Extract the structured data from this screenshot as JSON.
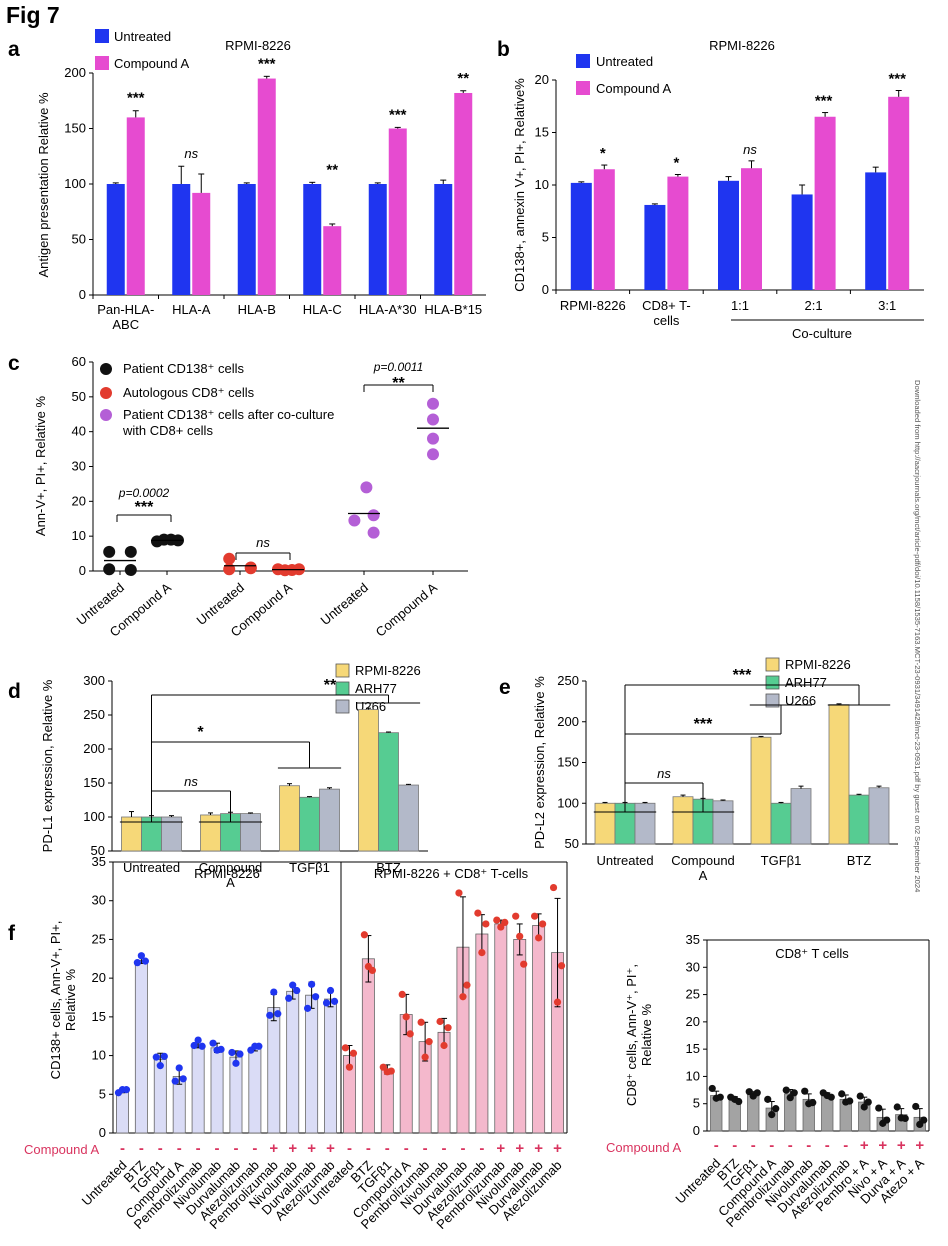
{
  "figure_title": "Fig 7",
  "side_note": "Downloaded from http://aacrjournals.org/mct/article-pdf/doi/10.1158/1535-7163.MCT-23-0931/3491428/mct-23-0931.pdf by guest on 02 September 2024",
  "colors": {
    "untreated": "#1f35f0",
    "compound": "#e64bd0",
    "rpmi": "#f6d878",
    "arh77": "#56cc92",
    "u266": "#b3b9c9",
    "panel_f_light": "#dadcf6",
    "panel_f_pink": "#f4b8cc",
    "panel_f_gray": "#a3a3a3",
    "dot_blue": "#1f35f0",
    "dot_red": "#e23b2e",
    "dot_black": "#111111",
    "dot_purple": "#b45fd6",
    "minus_plus": "#d9345f"
  },
  "chart_data": [
    {
      "panel": "a",
      "type": "bar",
      "title": "RPMI-8226",
      "ylabel": "Antigen presentation  Relative %",
      "ylim": [
        0,
        200
      ],
      "yticks": [
        "0",
        "50",
        "100",
        "150",
        "200"
      ],
      "categories": [
        "Pan-HLA-\nABC",
        "HLA-A",
        "HLA-B",
        "HLA-C",
        "HLA-A*30",
        "HLA-B*15"
      ],
      "series": [
        {
          "name": "Untreated",
          "values": [
            100,
            100,
            100,
            100,
            100,
            100
          ],
          "errors": [
            1,
            16,
            1,
            1.5,
            1,
            3.5
          ]
        },
        {
          "name": "Compound A",
          "values": [
            160,
            92,
            195,
            62,
            150,
            182
          ],
          "errors": [
            6,
            17,
            2,
            2,
            1,
            2
          ]
        }
      ],
      "significance": [
        "***",
        "ns",
        "***",
        "**",
        "***",
        "**"
      ]
    },
    {
      "panel": "b",
      "type": "bar",
      "title": "RPMI-8226",
      "ylabel": "CD138+, annexin V+, PI+, Relative%",
      "ylim": [
        0,
        20
      ],
      "yticks": [
        "0",
        "5",
        "10",
        "15",
        "20"
      ],
      "categories": [
        "RPMI-8226",
        "CD8+ T-\ncells",
        "1:1",
        "2:1",
        "3:1"
      ],
      "group_label": "Co-culture",
      "series": [
        {
          "name": "Untreated",
          "values": [
            10.2,
            8.1,
            10.4,
            9.1,
            11.2
          ],
          "errors": [
            0.1,
            0.1,
            0.4,
            0.9,
            0.5
          ]
        },
        {
          "name": "Compound A",
          "values": [
            11.5,
            10.8,
            11.6,
            16.5,
            18.4
          ],
          "errors": [
            0.4,
            0.2,
            0.7,
            0.4,
            0.6
          ]
        }
      ],
      "significance": [
        "*",
        "*",
        "ns",
        "***",
        "***"
      ]
    },
    {
      "panel": "c",
      "type": "scatter",
      "ylabel": "Ann-V+, PI+, Relative %",
      "ylim": [
        0,
        60
      ],
      "yticks": [
        "0",
        "10",
        "20",
        "30",
        "40",
        "50",
        "60"
      ],
      "x_tick_labels": [
        "Untreated",
        "Compound A",
        "Untreated",
        "Compound A",
        "Untreated",
        "Compound A"
      ],
      "legend": [
        "Patient CD138⁺ cells",
        "Autologous CD8⁺ cells",
        "Patient CD138⁺ cells after co-culture\nwith CD8+ cells"
      ],
      "groups": [
        {
          "name": "Patient CD138⁺ cells",
          "untreated": [
            5.5,
            5.5,
            0.5,
            0.3
          ],
          "compound": [
            8.5,
            9.0,
            9.0,
            8.8
          ],
          "mean_untreated": 3.0,
          "mean_compound": 8.8
        },
        {
          "name": "Autologous CD8⁺ cells",
          "untreated": [
            3.5,
            1.0,
            0.5,
            0.8
          ],
          "compound": [
            0.5,
            0.2,
            0.3,
            0.5
          ],
          "mean_untreated": 1.5,
          "mean_compound": 0.4
        },
        {
          "name": "Patient CD138⁺ cells after co-culture",
          "untreated": [
            24.0,
            16.0,
            14.5,
            11.0
          ],
          "compound": [
            48.0,
            43.5,
            38.0,
            33.5
          ],
          "mean_untreated": 16.5,
          "mean_compound": 41.0
        }
      ],
      "annotations": [
        {
          "pvalue": "p=0.0002",
          "stars": "***"
        },
        {
          "pvalue": "",
          "stars": "ns"
        },
        {
          "pvalue": "p=0.0011",
          "stars": "**"
        }
      ]
    },
    {
      "panel": "d",
      "type": "bar",
      "ylabel": "PD-L1 expression, Relative %",
      "ylim": [
        50,
        300
      ],
      "yticks": [
        "50",
        "100",
        "150",
        "200",
        "250",
        "300"
      ],
      "categories": [
        "Untreated",
        "Compound\nA",
        "TGFβ1",
        "BTZ"
      ],
      "series": [
        {
          "name": "RPMI-8226",
          "values": [
            100,
            103,
            146,
            258
          ],
          "errors": [
            8,
            3,
            3,
            2
          ]
        },
        {
          "name": "ARH77",
          "values": [
            100,
            105,
            129,
            224
          ],
          "errors": [
            2,
            2,
            1,
            1
          ]
        },
        {
          "name": "U266",
          "values": [
            100,
            105,
            141,
            147
          ],
          "errors": [
            2,
            1,
            2,
            1
          ]
        }
      ],
      "brackets": [
        "ns",
        "*",
        "**"
      ]
    },
    {
      "panel": "e",
      "type": "bar",
      "ylabel": "PD-L2 expression, Relative %",
      "ylim": [
        50,
        250
      ],
      "yticks": [
        "50",
        "100",
        "150",
        "200",
        "250"
      ],
      "categories": [
        "Untreated",
        "Compound\nA",
        "TGFβ1",
        "BTZ"
      ],
      "series": [
        {
          "name": "RPMI-8226",
          "values": [
            100,
            108,
            181,
            221
          ],
          "errors": [
            1,
            2,
            1,
            1
          ]
        },
        {
          "name": "ARH77",
          "values": [
            100,
            105,
            100,
            110
          ],
          "errors": [
            1,
            1,
            1,
            1
          ]
        },
        {
          "name": "U266",
          "values": [
            100,
            103,
            118,
            119
          ],
          "errors": [
            1,
            1,
            3,
            2
          ]
        }
      ],
      "brackets": [
        "ns",
        "***",
        "***"
      ]
    },
    {
      "panel": "f",
      "type": "bar",
      "ylabel": "CD138+ cells, Ann-V+, PI+,\nRelative %",
      "ylim": [
        0,
        35
      ],
      "yticks": [
        "0",
        "5",
        "10",
        "15",
        "20",
        "25",
        "30",
        "35"
      ],
      "row_label": "Compound A",
      "sections": [
        {
          "title": "RPMI-8226",
          "categories": [
            "Untreated",
            "BTZ",
            "TGFβ1",
            "Compound A",
            "Pembrolizumab",
            "Nivolumab",
            "Durvalumab",
            "Atezolizumab",
            "Pembrolizumab",
            "Nivolumab",
            "Durvalumab",
            "Atezolizumab"
          ],
          "values": [
            5.5,
            22.3,
            9.5,
            7.3,
            11.5,
            11.0,
            9.8,
            11.0,
            16.2,
            18.3,
            17.8,
            17.3
          ],
          "errors": [
            0.3,
            0.4,
            0.8,
            1.0,
            0.5,
            0.6,
            0.8,
            0.4,
            1.7,
            1.0,
            1.7,
            1.0
          ],
          "points": [
            [
              5.2,
              5.6,
              5.6
            ],
            [
              22.0,
              22.9,
              22.2
            ],
            [
              9.8,
              8.7,
              9.9
            ],
            [
              6.7,
              8.4,
              7.0
            ],
            [
              11.3,
              12.0,
              11.2
            ],
            [
              11.6,
              10.7,
              10.8
            ],
            [
              10.4,
              9.0,
              10.2
            ],
            [
              10.7,
              11.2,
              11.2
            ],
            [
              15.2,
              18.2,
              15.4
            ],
            [
              17.4,
              19.1,
              18.4
            ],
            [
              16.1,
              19.2,
              17.6
            ],
            [
              16.8,
              18.4,
              17.0
            ]
          ],
          "compound": [
            "-",
            "-",
            "-",
            "-",
            "-",
            "-",
            "-",
            "-",
            "+",
            "+",
            "+",
            "+"
          ]
        },
        {
          "title": "RPMI-8226 + CD8⁺ T-cells",
          "categories": [
            "Untreated",
            "BTZ",
            "TGFβ1",
            "Compound A",
            "Pembrolizumab",
            "Nivolumab",
            "Durvalumab",
            "Atezolizumab",
            "Pembrolizumab",
            "Nivolumab",
            "Durvalumab",
            "Atezolizumab"
          ],
          "values": [
            10.0,
            22.5,
            8.2,
            15.3,
            11.8,
            13.0,
            24.0,
            25.7,
            27.0,
            25.0,
            26.8,
            23.3
          ],
          "errors": [
            1.3,
            3.0,
            0.6,
            2.6,
            2.5,
            1.8,
            6.5,
            2.5,
            0.5,
            2.0,
            1.5,
            7.0
          ],
          "points": [
            [
              11.0,
              8.5,
              10.3
            ],
            [
              25.6,
              21.5,
              21.0
            ],
            [
              8.5,
              7.9,
              8.0
            ],
            [
              17.9,
              15.0,
              12.8
            ],
            [
              14.3,
              9.8,
              11.8
            ],
            [
              14.4,
              11.3,
              13.6
            ],
            [
              31.0,
              17.6,
              19.1
            ],
            [
              28.4,
              23.3,
              27.0
            ],
            [
              27.5,
              26.6,
              27.2
            ],
            [
              28.0,
              25.4,
              21.8
            ],
            [
              28.0,
              25.2,
              27.0
            ],
            [
              31.7,
              16.9,
              21.6
            ]
          ],
          "compound": [
            "-",
            "-",
            "-",
            "-",
            "-",
            "-",
            "-",
            "-",
            "+",
            "+",
            "+",
            "+"
          ]
        }
      ]
    },
    {
      "panel": "f2",
      "type": "bar",
      "title": "CD8⁺ T cells",
      "ylabel": "CD8⁺ cells, Ann-V⁺, PI⁺,\nRelative %",
      "ylim": [
        0,
        35
      ],
      "yticks": [
        "0",
        "5",
        "10",
        "15",
        "20",
        "25",
        "30",
        "35"
      ],
      "row_label": "Compound A",
      "categories": [
        "Untreated",
        "BTZ",
        "TGFβ1",
        "Compound A",
        "Pembrolizumab",
        "Nivolumab",
        "Durvalumab",
        "Atezolizumab",
        "Pembro + A",
        "Nivo + A",
        "Durva + A",
        "Atezo + A"
      ],
      "values": [
        6.5,
        5.8,
        6.8,
        4.2,
        6.8,
        5.8,
        6.5,
        5.8,
        5.3,
        2.5,
        3.0,
        2.5
      ],
      "errors": [
        0.8,
        0.5,
        0.4,
        1.2,
        0.8,
        1.0,
        0.5,
        0.8,
        0.9,
        1.5,
        1.1,
        1.6
      ],
      "points": [
        [
          7.8,
          6.0,
          6.2
        ],
        [
          6.2,
          5.8,
          5.4
        ],
        [
          7.2,
          6.4,
          7.0
        ],
        [
          5.8,
          3.0,
          4.1
        ],
        [
          7.5,
          6.1,
          7.0
        ],
        [
          7.3,
          5.0,
          5.2
        ],
        [
          7.0,
          6.5,
          6.2
        ],
        [
          6.8,
          5.3,
          5.5
        ],
        [
          6.4,
          4.4,
          5.3
        ],
        [
          4.2,
          1.4,
          2.0
        ],
        [
          4.4,
          2.4,
          2.3
        ],
        [
          4.5,
          1.2,
          2.0
        ]
      ],
      "compound": [
        "-",
        "-",
        "-",
        "-",
        "-",
        "-",
        "-",
        "-",
        "+",
        "+",
        "+",
        "+"
      ]
    }
  ]
}
